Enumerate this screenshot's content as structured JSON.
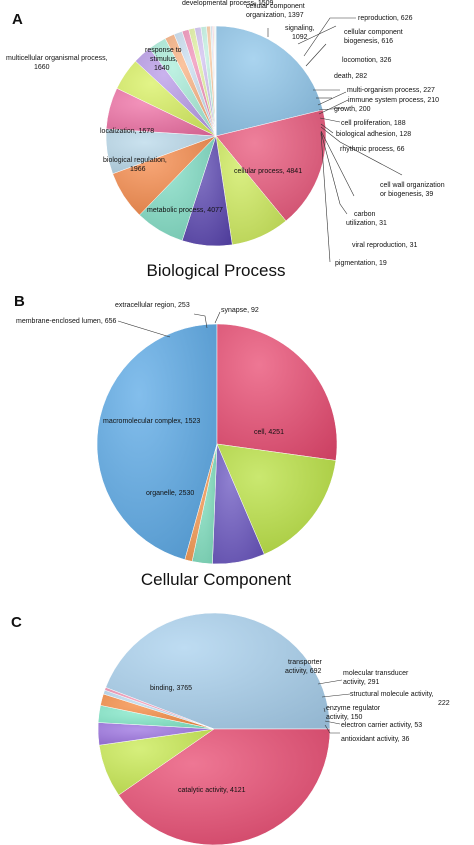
{
  "charts": [
    {
      "letter": "A",
      "title": "Biological Process",
      "chart_data": {
        "type": "pie",
        "slices": [
          {
            "label": "cellular process",
            "value": 4841,
            "color": "#8ec5ea"
          },
          {
            "label": "metabolic process",
            "value": 4077,
            "color": "#e8557a"
          },
          {
            "label": "biological regulation",
            "value": 1966,
            "color": "#cdea5a"
          },
          {
            "label": "localization",
            "value": 1678,
            "color": "#5a45b0"
          },
          {
            "label": "multicellular organismal process",
            "value": 1660,
            "color": "#7fdcc4"
          },
          {
            "label": "response to stimulus",
            "value": 1640,
            "color": "#f5894a"
          },
          {
            "label": "developmental process",
            "value": 1509,
            "color": "#b8d8ea"
          },
          {
            "label": "cellular component organization",
            "value": 1397,
            "color": "#ef6fa4"
          },
          {
            "label": "signaling",
            "value": 1092,
            "color": "#d8f060"
          },
          {
            "label": "reproduction",
            "value": 626,
            "color": "#b89ae8"
          },
          {
            "label": "cellular component biogenesis",
            "value": 616,
            "color": "#a8ecd8"
          },
          {
            "label": "locomotion",
            "value": 326,
            "color": "#f8b080"
          },
          {
            "label": "death",
            "value": 282,
            "color": "#c8dcef"
          },
          {
            "label": "multi-organism process",
            "value": 227,
            "color": "#f090b8"
          },
          {
            "label": "growth",
            "value": 200,
            "color": "#e0f0a0"
          },
          {
            "label": "immune system process",
            "value": 210,
            "color": "#d0c0f0"
          },
          {
            "label": "cell proliferation",
            "value": 188,
            "color": "#c0f0e0"
          },
          {
            "label": "biological adhesion",
            "value": 128,
            "color": "#f8c8a0"
          },
          {
            "label": "rhythmic process",
            "value": 66,
            "color": "#d8e8f0"
          },
          {
            "label": "cell wall organization or biogenesis",
            "value": 39,
            "color": "#f0b0c8"
          },
          {
            "label": "carbon utilization",
            "value": 31,
            "color": "#e8f4b8"
          },
          {
            "label": "viral reproduction",
            "value": 31,
            "color": "#e0d4f4"
          },
          {
            "label": "pigmentation",
            "value": 19,
            "color": "#d0f4e8"
          }
        ]
      },
      "labels": [
        {
          "text": "developmental process, 1509"
        },
        {
          "text": "cellular component"
        },
        {
          "text": "organization, 1397"
        },
        {
          "text": "signaling,"
        },
        {
          "text": "1092"
        },
        {
          "text": "reproduction, 626"
        },
        {
          "text": "cellular component"
        },
        {
          "text": "biogenesis, 616"
        },
        {
          "text": "multicellular organismal process,"
        },
        {
          "text": "1660"
        },
        {
          "text": "response to"
        },
        {
          "text": "stimulus,"
        },
        {
          "text": "1640"
        },
        {
          "text": "locomotion, 326"
        },
        {
          "text": "death, 282"
        },
        {
          "text": "multi-organism process, 227"
        },
        {
          "text": "immune system process, 210"
        },
        {
          "text": "growth, 200"
        },
        {
          "text": "cell proliferation, 188"
        },
        {
          "text": "localization, 1678"
        },
        {
          "text": "biological adhesion, 128"
        },
        {
          "text": "rhythmic process, 66"
        },
        {
          "text": "biological regulation,"
        },
        {
          "text": "1966"
        },
        {
          "text": "cellular process, 4841"
        },
        {
          "text": "cell wall organization"
        },
        {
          "text": "or biogenesis, 39"
        },
        {
          "text": "metabolic process, 4077"
        },
        {
          "text": "carbon"
        },
        {
          "text": "utilization, 31"
        },
        {
          "text": "viral reproduction, 31"
        },
        {
          "text": "pigmentation, 19"
        }
      ]
    },
    {
      "letter": "B",
      "title": "Cellular Component",
      "chart_data": {
        "type": "pie",
        "slices": [
          {
            "label": "cell",
            "value": 4251,
            "color": "#5aa8e6"
          },
          {
            "label": "organelle",
            "value": 2530,
            "color": "#e84a70"
          },
          {
            "label": "macromolecular complex",
            "value": 1523,
            "color": "#b8e040"
          },
          {
            "label": "membrane-enclosed lumen",
            "value": 656,
            "color": "#6a55c0"
          },
          {
            "label": "extracellular region",
            "value": 253,
            "color": "#80e0c0"
          },
          {
            "label": "synapse",
            "value": 92,
            "color": "#f59850"
          }
        ]
      },
      "labels": [
        {
          "text": "extracellular region, 253"
        },
        {
          "text": "synapse, 92"
        },
        {
          "text": "membrane-enclosed lumen, 656"
        },
        {
          "text": "macromolecular complex, 1523"
        },
        {
          "text": "cell, 4251"
        },
        {
          "text": "organelle, 2530"
        }
      ]
    },
    {
      "letter": "C",
      "title": "",
      "chart_data": {
        "type": "pie",
        "slices": [
          {
            "label": "catalytic activity",
            "value": 4121,
            "color": "#a8d0ee"
          },
          {
            "label": "binding",
            "value": 3765,
            "color": "#e84a70"
          },
          {
            "label": "transporter activity",
            "value": 692,
            "color": "#c8ea50"
          },
          {
            "label": "molecular transducer activity",
            "value": 291,
            "color": "#9a70e0"
          },
          {
            "label": "structural molecule activity",
            "value": 222,
            "color": "#80e8c8"
          },
          {
            "label": "enzyme regulator activity",
            "value": 150,
            "color": "#f58a40"
          },
          {
            "label": "electron carrier activity",
            "value": 53,
            "color": "#b8d8f0"
          },
          {
            "label": "antioxidant activity",
            "value": 36,
            "color": "#f090b0"
          }
        ]
      },
      "labels": [
        {
          "text": "transporter"
        },
        {
          "text": "activity, 692"
        },
        {
          "text": "molecular transducer"
        },
        {
          "text": "activity, 291"
        },
        {
          "text": "structural molecule activity,"
        },
        {
          "text": "222"
        },
        {
          "text": "enzyme regulator"
        },
        {
          "text": "activity, 150"
        },
        {
          "text": "electron carrier activity, 53"
        },
        {
          "text": "antioxidant activity, 36"
        },
        {
          "text": "binding, 3765"
        },
        {
          "text": "catalytic activity, 4121"
        }
      ]
    }
  ]
}
